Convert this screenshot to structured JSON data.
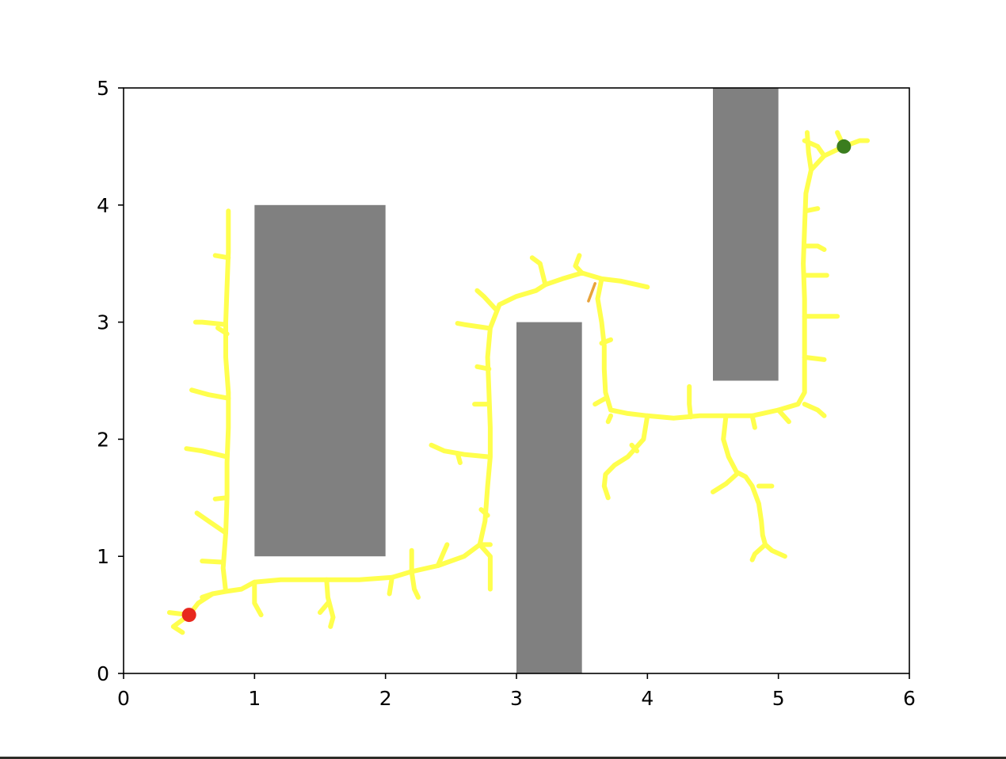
{
  "chart_data": {
    "type": "scatter",
    "title": "",
    "xlabel": "",
    "ylabel": "",
    "xlim": [
      0,
      6
    ],
    "ylim": [
      0,
      5
    ],
    "xticks": [
      "0",
      "1",
      "2",
      "3",
      "4",
      "5",
      "6"
    ],
    "yticks": [
      "0",
      "1",
      "2",
      "3",
      "4",
      "5"
    ],
    "grid": false,
    "legend": "none",
    "colors": {
      "tree": "#ffff4d",
      "path": "#e8a33a",
      "obstacle": "#808080",
      "start": "#e8281e",
      "goal": "#3a7d1e"
    },
    "obstacles": [
      {
        "x0": 1.0,
        "x1": 2.0,
        "y0": 1.0,
        "y1": 4.0
      },
      {
        "x0": 3.0,
        "x1": 3.5,
        "y0": 0.0,
        "y1": 3.0
      },
      {
        "x0": 4.5,
        "x1": 5.0,
        "y0": 2.5,
        "y1": 5.0
      }
    ],
    "start": [
      0.5,
      0.5
    ],
    "goal": [
      5.5,
      4.5
    ],
    "path": [
      [
        3.55,
        3.18
      ],
      [
        3.6,
        3.33
      ]
    ],
    "tree": [
      [
        [
          0.5,
          0.5
        ],
        [
          0.57,
          0.6
        ],
        [
          0.68,
          0.68
        ],
        [
          0.78,
          0.7
        ],
        [
          0.9,
          0.72
        ],
        [
          1.0,
          0.78
        ],
        [
          1.2,
          0.8
        ],
        [
          1.5,
          0.8
        ],
        [
          1.8,
          0.8
        ],
        [
          2.05,
          0.82
        ],
        [
          2.2,
          0.87
        ],
        [
          2.4,
          0.92
        ],
        [
          2.6,
          1.0
        ],
        [
          2.72,
          1.1
        ],
        [
          2.76,
          1.3
        ],
        [
          2.78,
          1.6
        ],
        [
          2.8,
          1.85
        ],
        [
          2.8,
          2.1
        ],
        [
          2.79,
          2.4
        ],
        [
          2.78,
          2.7
        ],
        [
          2.8,
          2.95
        ],
        [
          2.87,
          3.15
        ],
        [
          3.0,
          3.22
        ],
        [
          3.15,
          3.27
        ],
        [
          3.22,
          3.32
        ],
        [
          3.35,
          3.37
        ],
        [
          3.5,
          3.42
        ],
        [
          3.65,
          3.37
        ],
        [
          3.8,
          3.35
        ],
        [
          3.92,
          3.32
        ],
        [
          4.0,
          3.3
        ]
      ],
      [
        [
          0.78,
          0.7
        ],
        [
          0.76,
          0.9
        ],
        [
          0.78,
          1.2
        ],
        [
          0.79,
          1.5
        ],
        [
          0.79,
          1.8
        ],
        [
          0.8,
          2.1
        ],
        [
          0.8,
          2.4
        ],
        [
          0.78,
          2.7
        ],
        [
          0.78,
          3.0
        ],
        [
          0.79,
          3.3
        ],
        [
          0.8,
          3.6
        ],
        [
          0.8,
          3.95
        ]
      ],
      [
        [
          0.5,
          0.5
        ],
        [
          0.38,
          0.4
        ],
        [
          0.45,
          0.35
        ]
      ],
      [
        [
          0.5,
          0.5
        ],
        [
          0.35,
          0.52
        ]
      ],
      [
        [
          0.68,
          0.68
        ],
        [
          0.6,
          0.65
        ]
      ],
      [
        [
          0.76,
          0.95
        ],
        [
          0.6,
          0.96
        ]
      ],
      [
        [
          0.78,
          1.2
        ],
        [
          0.65,
          1.3
        ],
        [
          0.56,
          1.37
        ]
      ],
      [
        [
          0.78,
          1.5
        ],
        [
          0.7,
          1.49
        ]
      ],
      [
        [
          0.79,
          1.85
        ],
        [
          0.6,
          1.9
        ],
        [
          0.48,
          1.92
        ]
      ],
      [
        [
          0.8,
          2.35
        ],
        [
          0.65,
          2.38
        ],
        [
          0.52,
          2.42
        ]
      ],
      [
        [
          0.79,
          2.9
        ],
        [
          0.72,
          2.95
        ]
      ],
      [
        [
          0.78,
          2.98
        ],
        [
          0.6,
          3.0
        ],
        [
          0.55,
          3.0
        ]
      ],
      [
        [
          0.8,
          3.55
        ],
        [
          0.7,
          3.57
        ]
      ],
      [
        [
          1.0,
          0.78
        ],
        [
          1.0,
          0.6
        ],
        [
          1.05,
          0.5
        ]
      ],
      [
        [
          1.55,
          0.8
        ],
        [
          1.56,
          0.65
        ],
        [
          1.6,
          0.48
        ],
        [
          1.58,
          0.4
        ]
      ],
      [
        [
          1.56,
          0.6
        ],
        [
          1.5,
          0.52
        ]
      ],
      [
        [
          2.05,
          0.82
        ],
        [
          2.03,
          0.68
        ]
      ],
      [
        [
          2.2,
          0.87
        ],
        [
          2.22,
          0.72
        ],
        [
          2.25,
          0.65
        ]
      ],
      [
        [
          2.2,
          0.87
        ],
        [
          2.2,
          1.05
        ]
      ],
      [
        [
          2.4,
          0.92
        ],
        [
          2.45,
          1.05
        ],
        [
          2.47,
          1.1
        ]
      ],
      [
        [
          2.72,
          1.1
        ],
        [
          2.8,
          1.1
        ]
      ],
      [
        [
          2.72,
          1.1
        ],
        [
          2.8,
          1.0
        ],
        [
          2.8,
          0.85
        ],
        [
          2.8,
          0.72
        ]
      ],
      [
        [
          2.78,
          1.35
        ],
        [
          2.73,
          1.4
        ]
      ],
      [
        [
          2.79,
          1.85
        ],
        [
          2.6,
          1.87
        ],
        [
          2.45,
          1.9
        ],
        [
          2.35,
          1.95
        ]
      ],
      [
        [
          2.55,
          1.88
        ],
        [
          2.57,
          1.8
        ]
      ],
      [
        [
          2.79,
          2.3
        ],
        [
          2.68,
          2.3
        ]
      ],
      [
        [
          2.79,
          2.6
        ],
        [
          2.7,
          2.62
        ]
      ],
      [
        [
          2.78,
          2.95
        ],
        [
          2.6,
          2.98
        ],
        [
          2.55,
          2.99
        ]
      ],
      [
        [
          2.85,
          3.1
        ],
        [
          2.75,
          3.22
        ],
        [
          2.7,
          3.27
        ]
      ],
      [
        [
          3.22,
          3.32
        ],
        [
          3.18,
          3.5
        ],
        [
          3.12,
          3.55
        ]
      ],
      [
        [
          3.5,
          3.42
        ],
        [
          3.45,
          3.48
        ],
        [
          3.48,
          3.57
        ]
      ],
      [
        [
          3.65,
          3.37
        ],
        [
          3.62,
          3.2
        ],
        [
          3.65,
          3.0
        ],
        [
          3.67,
          2.8
        ],
        [
          3.67,
          2.6
        ],
        [
          3.68,
          2.4
        ],
        [
          3.72,
          2.25
        ],
        [
          3.85,
          2.22
        ],
        [
          4.0,
          2.2
        ],
        [
          4.2,
          2.18
        ],
        [
          4.4,
          2.2
        ],
        [
          4.6,
          2.2
        ],
        [
          4.8,
          2.2
        ],
        [
          5.0,
          2.25
        ],
        [
          5.15,
          2.3
        ],
        [
          5.2,
          2.4
        ],
        [
          5.2,
          2.6
        ],
        [
          5.2,
          2.9
        ],
        [
          5.2,
          3.2
        ],
        [
          5.19,
          3.5
        ],
        [
          5.2,
          3.8
        ],
        [
          5.21,
          4.1
        ],
        [
          5.25,
          4.3
        ],
        [
          5.35,
          4.42
        ],
        [
          5.5,
          4.5
        ],
        [
          5.62,
          4.55
        ],
        [
          5.68,
          4.55
        ]
      ],
      [
        [
          3.65,
          2.82
        ],
        [
          3.72,
          2.85
        ]
      ],
      [
        [
          3.68,
          2.35
        ],
        [
          3.6,
          2.3
        ]
      ],
      [
        [
          3.72,
          2.2
        ],
        [
          3.7,
          2.15
        ]
      ],
      [
        [
          4.0,
          2.2
        ],
        [
          3.97,
          2.0
        ],
        [
          3.85,
          1.85
        ],
        [
          3.75,
          1.78
        ],
        [
          3.68,
          1.7
        ],
        [
          3.67,
          1.6
        ],
        [
          3.7,
          1.5
        ]
      ],
      [
        [
          3.92,
          1.9
        ],
        [
          3.88,
          1.95
        ]
      ],
      [
        [
          4.33,
          2.19
        ],
        [
          4.32,
          2.3
        ],
        [
          4.32,
          2.45
        ]
      ],
      [
        [
          4.6,
          2.2
        ],
        [
          4.58,
          2.0
        ],
        [
          4.62,
          1.85
        ],
        [
          4.68,
          1.72
        ],
        [
          4.75,
          1.68
        ],
        [
          4.8,
          1.6
        ],
        [
          4.85,
          1.45
        ],
        [
          4.87,
          1.3
        ],
        [
          4.88,
          1.18
        ],
        [
          4.9,
          1.1
        ],
        [
          4.95,
          1.05
        ],
        [
          5.05,
          1.0
        ]
      ],
      [
        [
          4.68,
          1.7
        ],
        [
          4.6,
          1.62
        ],
        [
          4.5,
          1.55
        ]
      ],
      [
        [
          4.85,
          1.6
        ],
        [
          4.95,
          1.6
        ]
      ],
      [
        [
          4.9,
          1.1
        ],
        [
          4.82,
          1.02
        ],
        [
          4.8,
          0.97
        ]
      ],
      [
        [
          4.8,
          2.2
        ],
        [
          4.82,
          2.1
        ]
      ],
      [
        [
          5.0,
          2.25
        ],
        [
          5.08,
          2.15
        ]
      ],
      [
        [
          5.2,
          2.3
        ],
        [
          5.3,
          2.25
        ],
        [
          5.35,
          2.2
        ]
      ],
      [
        [
          5.2,
          2.7
        ],
        [
          5.35,
          2.68
        ]
      ],
      [
        [
          5.2,
          3.05
        ],
        [
          5.35,
          3.05
        ],
        [
          5.45,
          3.05
        ]
      ],
      [
        [
          5.2,
          3.4
        ],
        [
          5.3,
          3.4
        ],
        [
          5.37,
          3.4
        ]
      ],
      [
        [
          5.2,
          3.65
        ],
        [
          5.3,
          3.65
        ],
        [
          5.35,
          3.62
        ]
      ],
      [
        [
          5.21,
          3.95
        ],
        [
          5.3,
          3.97
        ]
      ],
      [
        [
          5.25,
          4.3
        ],
        [
          5.23,
          4.45
        ],
        [
          5.22,
          4.62
        ]
      ],
      [
        [
          5.35,
          4.42
        ],
        [
          5.3,
          4.5
        ],
        [
          5.2,
          4.55
        ]
      ],
      [
        [
          5.5,
          4.5
        ],
        [
          5.45,
          4.62
        ]
      ]
    ]
  }
}
